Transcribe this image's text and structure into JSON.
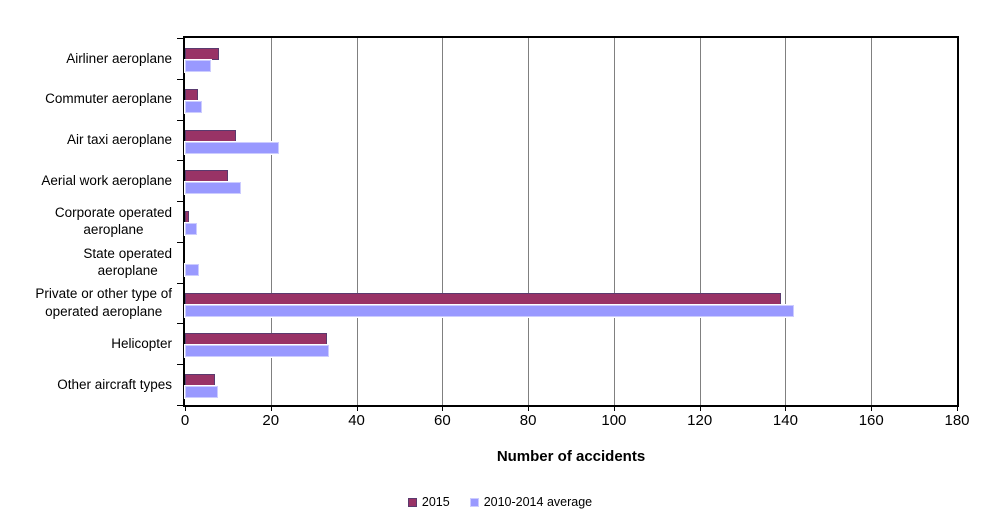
{
  "chart_data": {
    "type": "bar",
    "orientation": "horizontal",
    "title": "",
    "xlabel": "Number of accidents",
    "ylabel": "",
    "categories": [
      "Airliner aeroplane",
      "Commuter aeroplane",
      "Air taxi aeroplane",
      "Aerial work aeroplane",
      "Corporate operated\naeroplane",
      "State operated\naeroplane",
      "Private or other type of\noperated aeroplane",
      "Helicopter",
      "Other aircraft types"
    ],
    "series": [
      {
        "name": "2015",
        "color": "#993366",
        "border_color": "#5a3a6e",
        "values": [
          8,
          3,
          12,
          10,
          1,
          0,
          139,
          33,
          7
        ]
      },
      {
        "name": "2010-2014 average",
        "color": "#9999ff",
        "border_color": "#ccccff",
        "values": [
          6,
          4,
          22,
          13,
          2.8,
          3.2,
          142,
          33.6,
          7.8
        ]
      }
    ],
    "xlim": [
      0,
      180
    ],
    "xticks": [
      0,
      20,
      40,
      60,
      80,
      100,
      120,
      140,
      160,
      180
    ],
    "grid": "vertical",
    "gridline_color": "#808080",
    "axis_color": "#000000",
    "background_color": "#ffffff",
    "legend_position": "bottom-center"
  }
}
